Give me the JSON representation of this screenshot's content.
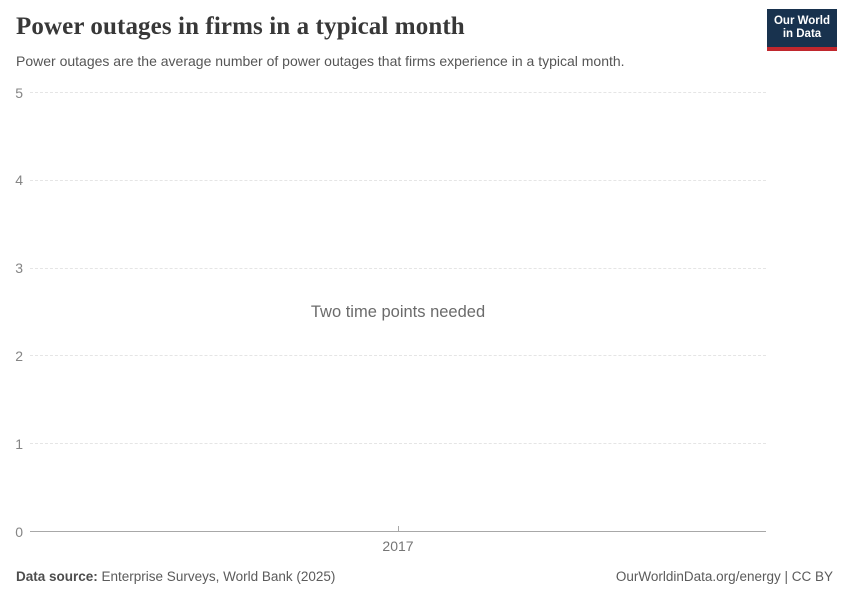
{
  "header": {
    "title": "Power outages in firms in a typical month",
    "subtitle": "Power outages are the average number of power outages that firms experience in a typical month.",
    "logo": {
      "line1": "Our World",
      "line2": "in Data",
      "bg_color": "#18324e",
      "accent_color": "#c0272d"
    }
  },
  "chart_data": {
    "type": "line",
    "title": "Power outages in firms in a typical month",
    "x_ticks": [
      "2017"
    ],
    "y_ticks": [
      0,
      1,
      2,
      3,
      4,
      5
    ],
    "ylim": [
      0,
      5
    ],
    "xlabel": "",
    "ylabel": "",
    "grid": "horizontal-dashed",
    "legend": "none",
    "series": [],
    "empty_message": "Two time points needed"
  },
  "footer": {
    "datasource_label": "Data source:",
    "datasource_value": " Enterprise Surveys, World Bank (2025)",
    "attribution": "OurWorldinData.org/energy | CC BY"
  },
  "colors": {
    "title_text": "#383838",
    "subtitle_text": "#555555",
    "gridline": "#e5e5e5",
    "axis_line": "#a8a8a8",
    "tick_text": "#858585",
    "message_text": "#6b6b6b",
    "footer_text": "#5b5b5b",
    "logo_bg": "#18324e",
    "logo_accent": "#c0272d"
  }
}
